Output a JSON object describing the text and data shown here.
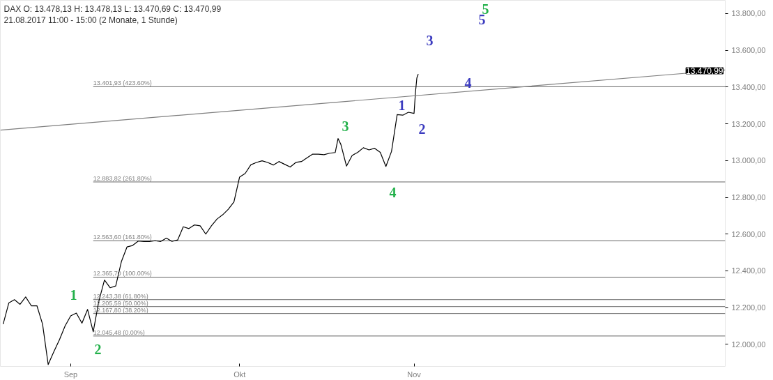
{
  "chart_data": {
    "type": "line",
    "title": "DAX  O: 13.478,13  H: 13.478,13  L: 13.470,69  C: 13.470,99",
    "subtitle": "21.08.2017 11:00 - 15:00   (2 Monate, 1 Stunde)",
    "xlim": [
      "2017-08-19T12:00",
      "2017-12-26T07:00"
    ],
    "xticks": [
      {
        "value": "2017-09-01",
        "label": "Sep"
      },
      {
        "value": "2017-10-01",
        "label": "Okt"
      },
      {
        "value": "2017-11-01",
        "label": "Nov"
      }
    ],
    "ylim": [
      11880,
      13872
    ],
    "yticks": [
      {
        "value": 12000,
        "label": "12.000,00"
      },
      {
        "value": 12200,
        "label": "12.200,00"
      },
      {
        "value": 12400,
        "label": "12.400,00"
      },
      {
        "value": 12600,
        "label": "12.600,00"
      },
      {
        "value": 12800,
        "label": "12.800,00"
      },
      {
        "value": 13000,
        "label": "13.000,00"
      },
      {
        "value": 13200,
        "label": "13.200,00"
      },
      {
        "value": 13400,
        "label": "13.400,00"
      },
      {
        "value": 13600,
        "label": "13.600,00"
      },
      {
        "value": 13800,
        "label": "13.800,00"
      }
    ],
    "grid": false,
    "series": [
      {
        "color": "#000000",
        "x": [
          "2017-08-20",
          "2017-08-21",
          "2017-08-22",
          "2017-08-23",
          "2017-08-24",
          "2017-08-25",
          "2017-08-26",
          "2017-08-27",
          "2017-08-28",
          "2017-08-29",
          "2017-08-30",
          "2017-08-31",
          "2017-09-01",
          "2017-09-02",
          "2017-09-03",
          "2017-09-04",
          "2017-09-05",
          "2017-09-06",
          "2017-09-07",
          "2017-09-08",
          "2017-09-09",
          "2017-09-10",
          "2017-09-11",
          "2017-09-12",
          "2017-09-13",
          "2017-09-14",
          "2017-09-15",
          "2017-09-16",
          "2017-09-17",
          "2017-09-18",
          "2017-09-19",
          "2017-09-20",
          "2017-09-21",
          "2017-09-22",
          "2017-09-23",
          "2017-09-24",
          "2017-09-25",
          "2017-09-26",
          "2017-09-27",
          "2017-09-28",
          "2017-09-29",
          "2017-09-30",
          "2017-10-01",
          "2017-10-02",
          "2017-10-03",
          "2017-10-04",
          "2017-10-05",
          "2017-10-06",
          "2017-10-07",
          "2017-10-08",
          "2017-10-09",
          "2017-10-10",
          "2017-10-11",
          "2017-10-12",
          "2017-10-13",
          "2017-10-14",
          "2017-10-15",
          "2017-10-16",
          "2017-10-17",
          "2017-10-18",
          "2017-10-18T12:00",
          "2017-10-19",
          "2017-10-20",
          "2017-10-21",
          "2017-10-22",
          "2017-10-23",
          "2017-10-24",
          "2017-10-25",
          "2017-10-26",
          "2017-10-27",
          "2017-10-28",
          "2017-10-29",
          "2017-10-30",
          "2017-10-31",
          "2017-11-01",
          "2017-11-01T06:00",
          "2017-11-01T12:00",
          "2017-11-01T18:00"
        ],
        "values": [
          12110,
          12225,
          12243,
          12218,
          12258,
          12210,
          12210,
          12110,
          11890,
          11960,
          12025,
          12100,
          12155,
          12170,
          12115,
          12190,
          12068,
          12235,
          12350,
          12308,
          12318,
          12450,
          12530,
          12538,
          12562,
          12560,
          12560,
          12564,
          12560,
          12578,
          12560,
          12568,
          12640,
          12630,
          12650,
          12645,
          12600,
          12645,
          12682,
          12705,
          12735,
          12775,
          12910,
          12930,
          12977,
          12990,
          12999,
          12990,
          12976,
          12995,
          12980,
          12965,
          12990,
          12995,
          13015,
          13035,
          13035,
          13032,
          13040,
          13044,
          13120,
          13088,
          12970,
          13028,
          13045,
          13070,
          13058,
          13067,
          13045,
          12968,
          13050,
          13250,
          13247,
          13263,
          13257,
          13370,
          13450,
          13471
        ]
      },
      {
        "type": "line",
        "color": "#7f7f7f",
        "x": [
          "2017-08-19T12:00",
          "2017-12-26T07:00"
        ],
        "values": [
          13166,
          13493
        ]
      }
    ],
    "ref_lines": [
      {
        "axis": "y",
        "value": 13401.93,
        "label": "13.401,93 (423.60%)"
      },
      {
        "axis": "y",
        "value": 12883.82,
        "label": "12.883,82 (261.80%)"
      },
      {
        "axis": "y",
        "value": 12563.6,
        "label": "12.563,60 (161.80%)"
      },
      {
        "axis": "y",
        "value": 12365.7,
        "label": "12.365,70 (100.00%)"
      },
      {
        "axis": "y",
        "value": 12243.38,
        "label": "12.243,38 (61.80%)"
      },
      {
        "axis": "y",
        "value": 12205.59,
        "label": "12.205,59 (50.00%)"
      },
      {
        "axis": "y",
        "value": 12167.8,
        "label": "12.167,80 (38.20%)"
      },
      {
        "axis": "y",
        "value": 12045.48,
        "label": "12.045,48 (0.00%)"
      }
    ],
    "annotations": [
      "1",
      "2",
      "3",
      "4",
      "5",
      "1",
      "2",
      "3",
      "4",
      "5",
      "13.470,99"
    ]
  }
}
